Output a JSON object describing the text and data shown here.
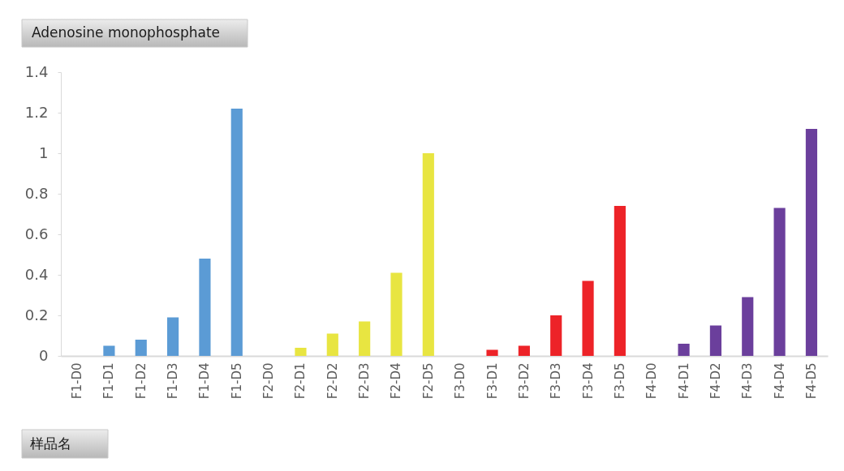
{
  "chart_data": {
    "type": "bar",
    "title": "Adenosine monophosphate",
    "xlabel": "样品名",
    "categories": [
      "F1-D0",
      "F1-D1",
      "F1-D2",
      "F1-D3",
      "F1-D4",
      "F1-D5",
      "F2-D0",
      "F2-D1",
      "F2-D2",
      "F2-D3",
      "F2-D4",
      "F2-D5",
      "F3-D0",
      "F3-D1",
      "F3-D2",
      "F3-D3",
      "F3-D4",
      "F3-D5",
      "F4-D0",
      "F4-D1",
      "F4-D2",
      "F4-D3",
      "F4-D4",
      "F4-D5"
    ],
    "values": [
      0,
      0.05,
      0.08,
      0.19,
      0.48,
      1.22,
      0,
      0.04,
      0.11,
      0.17,
      0.41,
      1.0,
      0,
      0.03,
      0.05,
      0.2,
      0.37,
      0.74,
      0,
      0.06,
      0.15,
      0.29,
      0.73,
      1.12
    ],
    "colors": [
      "#5b9bd5",
      "#5b9bd5",
      "#5b9bd5",
      "#5b9bd5",
      "#5b9bd5",
      "#5b9bd5",
      "#e8e541",
      "#e8e541",
      "#e8e541",
      "#e8e541",
      "#e8e541",
      "#e8e541",
      "#ed2328",
      "#ed2328",
      "#ed2328",
      "#ed2328",
      "#ed2328",
      "#ed2328",
      "#6b3f9c",
      "#6b3f9c",
      "#6b3f9c",
      "#6b3f9c",
      "#6b3f9c",
      "#6b3f9c"
    ],
    "ylim": [
      0,
      1.4
    ],
    "yticks": [
      0,
      0.2,
      0.4,
      0.6,
      0.8,
      1,
      1.2,
      1.4
    ]
  }
}
